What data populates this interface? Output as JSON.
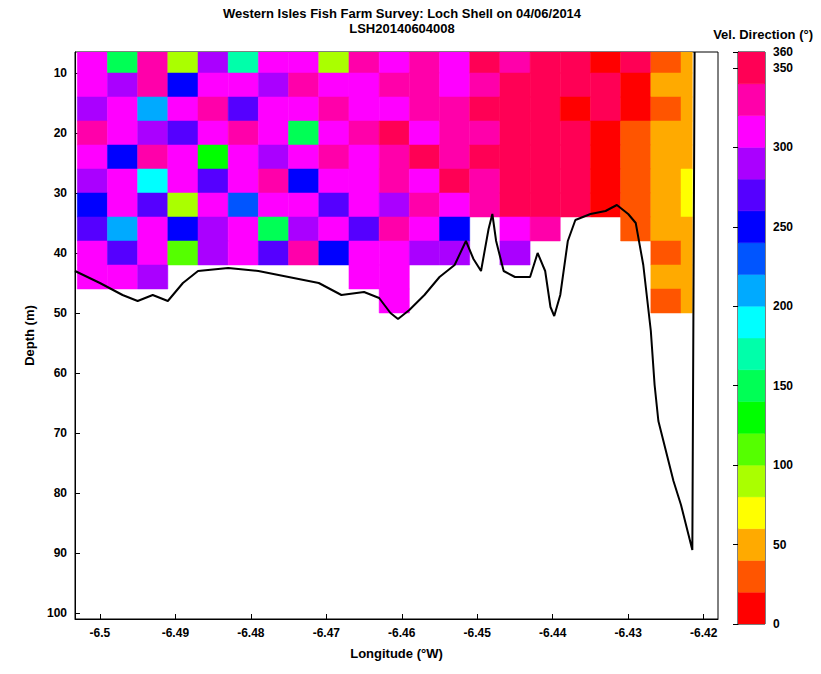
{
  "chart_data": {
    "type": "heatmap",
    "title": "Western Isles Fish Farm Survey: Loch Shell on 04/06/2014",
    "subtitle": "LSH20140604008",
    "x_label": "Longitude (°W)",
    "y_label": "Depth (m)",
    "xlim": [
      -6.5033,
      -6.4181
    ],
    "xticks": [
      -6.5,
      -6.49,
      -6.48,
      -6.47,
      -6.46,
      -6.45,
      -6.44,
      -6.43,
      -6.42
    ],
    "ylim": [
      6.5,
      101
    ],
    "yticks": [
      10,
      20,
      30,
      40,
      50,
      60,
      70,
      80,
      90,
      100
    ],
    "x_edges": [
      -6.503,
      -6.499,
      -6.495,
      -6.491,
      -6.487,
      -6.483,
      -6.479,
      -6.475,
      -6.471,
      -6.467,
      -6.463,
      -6.459,
      -6.455,
      -6.451,
      -6.447,
      -6.443,
      -6.439,
      -6.435,
      -6.431,
      -6.427,
      -6.423,
      -6.4215
    ],
    "depth_edges": [
      6.5,
      10,
      14,
      18,
      22,
      26,
      30,
      34,
      38,
      42,
      46,
      50
    ],
    "directions": [
      [
        300,
        140,
        320,
        80,
        290,
        160,
        310,
        300,
        90,
        320,
        300,
        330,
        310,
        340,
        320,
        350,
        355,
        5,
        350,
        30,
        45
      ],
      [
        300,
        280,
        320,
        250,
        310,
        300,
        290,
        320,
        310,
        300,
        320,
        330,
        310,
        320,
        340,
        350,
        355,
        350,
        10,
        40,
        50
      ],
      [
        290,
        310,
        200,
        300,
        320,
        270,
        310,
        300,
        330,
        310,
        300,
        320,
        330,
        340,
        350,
        355,
        5,
        350,
        15,
        35,
        45
      ],
      [
        320,
        300,
        290,
        260,
        310,
        320,
        300,
        150,
        310,
        320,
        340,
        310,
        320,
        330,
        355,
        350,
        355,
        10,
        20,
        40,
        50
      ],
      [
        300,
        240,
        320,
        310,
        120,
        300,
        290,
        310,
        320,
        300,
        330,
        340,
        320,
        350,
        340,
        355,
        350,
        5,
        25,
        45,
        55
      ],
      [
        280,
        300,
        180,
        310,
        270,
        300,
        320,
        250,
        300,
        310,
        320,
        300,
        340,
        330,
        350,
        340,
        355,
        15,
        30,
        50,
        60
      ],
      [
        250,
        300,
        260,
        90,
        300,
        220,
        310,
        300,
        260,
        310,
        290,
        320,
        300,
        330,
        340,
        350,
        340,
        10,
        35,
        50,
        60
      ],
      [
        260,
        200,
        300,
        240,
        280,
        310,
        150,
        290,
        300,
        270,
        320,
        300,
        250,
        null,
        300,
        320,
        null,
        null,
        20,
        40,
        55
      ],
      [
        300,
        260,
        310,
        110,
        290,
        300,
        270,
        320,
        240,
        300,
        310,
        290,
        280,
        null,
        290,
        null,
        null,
        null,
        null,
        30,
        45
      ],
      [
        300,
        310,
        290,
        null,
        null,
        null,
        null,
        null,
        null,
        300,
        310,
        null,
        null,
        null,
        null,
        null,
        null,
        null,
        null,
        40,
        50
      ],
      [
        null,
        null,
        null,
        null,
        null,
        null,
        null,
        null,
        null,
        null,
        310,
        null,
        null,
        null,
        null,
        null,
        null,
        null,
        null,
        30,
        50
      ]
    ],
    "colorbar": {
      "label": "Vel. Direction (°)",
      "range": [
        0,
        360
      ],
      "ticks": [
        0,
        50,
        100,
        150,
        200,
        250,
        300,
        350
      ]
    },
    "bathymetry": {
      "color": "#000000",
      "x": [
        -6.5033,
        -6.5,
        -6.497,
        -6.495,
        -6.493,
        -6.491,
        -6.489,
        -6.487,
        -6.483,
        -6.479,
        -6.475,
        -6.471,
        -6.468,
        -6.465,
        -6.463,
        -6.4615,
        -6.4605,
        -6.459,
        -6.457,
        -6.455,
        -6.453,
        -6.4515,
        -6.4505,
        -6.4495,
        -6.4485,
        -6.448,
        -6.4475,
        -6.4465,
        -6.445,
        -6.443,
        -6.442,
        -6.441,
        -6.4403,
        -6.4398,
        -6.439,
        -6.438,
        -6.437,
        -6.435,
        -6.433,
        -6.4315,
        -6.43,
        -6.429,
        -6.428,
        -6.427,
        -6.4265,
        -6.426,
        -6.425,
        -6.424,
        -6.423,
        -6.422,
        -6.4215,
        -6.4212
      ],
      "depth": [
        43,
        45,
        47,
        48,
        47,
        48,
        45,
        43,
        42.5,
        43,
        44,
        45,
        47,
        46.5,
        47.5,
        50,
        51,
        49.5,
        47,
        44,
        42,
        38,
        41,
        43,
        36,
        33.5,
        38,
        43,
        44,
        44,
        40,
        43,
        49,
        50.5,
        47,
        38,
        34.5,
        33.5,
        33,
        32,
        33.5,
        35,
        42,
        53,
        62,
        68,
        73,
        78,
        82,
        87,
        89.5,
        6.5
      ]
    }
  }
}
